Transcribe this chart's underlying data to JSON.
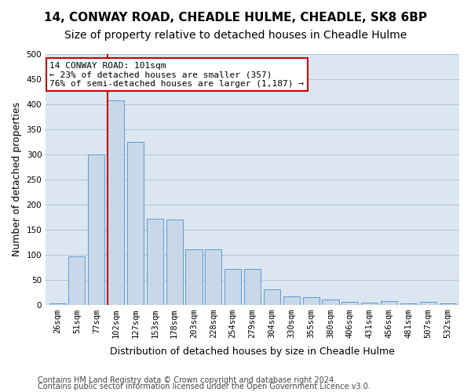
{
  "title1": "14, CONWAY ROAD, CHEADLE HULME, CHEADLE, SK8 6BP",
  "title2": "Size of property relative to detached houses in Cheadle Hulme",
  "xlabel": "Distribution of detached houses by size in Cheadle Hulme",
  "ylabel": "Number of detached properties",
  "categories": [
    "26sqm",
    "51sqm",
    "77sqm",
    "102sqm",
    "127sqm",
    "153sqm",
    "178sqm",
    "203sqm",
    "228sqm",
    "254sqm",
    "279sqm",
    "304sqm",
    "330sqm",
    "355sqm",
    "380sqm",
    "406sqm",
    "431sqm",
    "456sqm",
    "481sqm",
    "507sqm",
    "532sqm"
  ],
  "values": [
    3,
    97,
    300,
    408,
    325,
    172,
    170,
    110,
    110,
    72,
    72,
    30,
    17,
    15,
    10,
    5,
    4,
    7,
    2,
    5,
    2
  ],
  "bar_color": "#c8d8e8",
  "bar_edge_color": "#5b9bd5",
  "grid_color": "#b0c4d8",
  "background_color": "#dce6f0",
  "vline_x": 3,
  "vline_color": "#cc0000",
  "annotation_text": "14 CONWAY ROAD: 101sqm\n← 23% of detached houses are smaller (357)\n76% of semi-detached houses are larger (1,187) →",
  "annotation_box_color": "#cc0000",
  "ylim": [
    0,
    500
  ],
  "yticks": [
    0,
    50,
    100,
    150,
    200,
    250,
    300,
    350,
    400,
    450,
    500
  ],
  "footer1": "Contains HM Land Registry data © Crown copyright and database right 2024.",
  "footer2": "Contains public sector information licensed under the Open Government Licence v3.0.",
  "title1_fontsize": 11,
  "title2_fontsize": 10,
  "xlabel_fontsize": 9,
  "ylabel_fontsize": 9,
  "tick_fontsize": 7.5,
  "footer_fontsize": 7
}
